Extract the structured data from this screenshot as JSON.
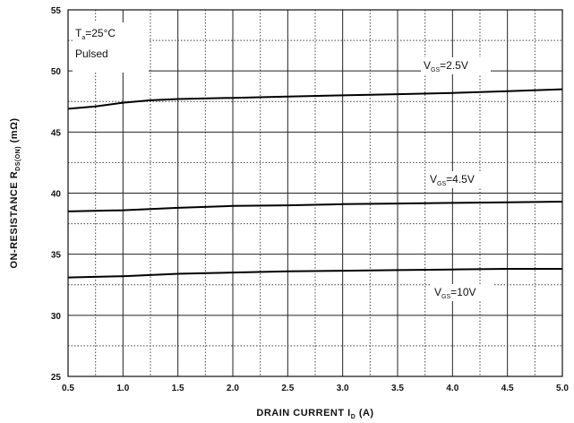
{
  "chart_data": {
    "type": "line",
    "xlabel": "DRAIN CURRENT",
    "xlabel_symbol": "I",
    "xlabel_sub": "D",
    "xlabel_unit": "(A)",
    "ylabel": "ON-RESISTANCE",
    "ylabel_symbol": "R",
    "ylabel_sub": "DS(ON)",
    "ylabel_unit": "(mΩ)",
    "xlim": [
      0.5,
      5.0
    ],
    "ylim": [
      25,
      55
    ],
    "x_major_ticks": [
      0.5,
      1.0,
      1.5,
      2.0,
      2.5,
      3.0,
      3.5,
      4.0,
      4.5,
      5.0
    ],
    "x_tick_labels": [
      "0.5",
      "1.0",
      "1.5",
      "2.0",
      "2.5",
      "3.0",
      "3.5",
      "4.0",
      "4.5",
      "5.0"
    ],
    "y_major_ticks": [
      25,
      30,
      35,
      40,
      45,
      50,
      55
    ],
    "y_tick_labels": [
      "25",
      "30",
      "35",
      "40",
      "45",
      "50",
      "55"
    ],
    "grid": true,
    "conditions": {
      "ta_symbol": "T",
      "ta_sub": "a",
      "ta_value": "=25°C",
      "mode": "Pulsed"
    },
    "series": [
      {
        "name": "V_GS=2.5V",
        "label_symbol": "V",
        "label_sub": "GS",
        "label_value": "=2.5V",
        "x": [
          0.5,
          0.75,
          1.0,
          1.25,
          1.5,
          2.0,
          2.5,
          3.0,
          3.5,
          4.0,
          4.5,
          5.0
        ],
        "y": [
          46.9,
          47.1,
          47.4,
          47.6,
          47.7,
          47.8,
          47.9,
          48.0,
          48.1,
          48.2,
          48.35,
          48.5
        ]
      },
      {
        "name": "V_GS=4.5V",
        "label_symbol": "V",
        "label_sub": "GS",
        "label_value": "=4.5V",
        "x": [
          0.5,
          1.0,
          1.5,
          2.0,
          2.5,
          3.0,
          3.5,
          4.0,
          4.5,
          5.0
        ],
        "y": [
          38.5,
          38.6,
          38.8,
          38.95,
          39.0,
          39.1,
          39.15,
          39.2,
          39.25,
          39.3
        ]
      },
      {
        "name": "V_GS=10V",
        "label_symbol": "V",
        "label_sub": "GS",
        "label_value": "=10V",
        "x": [
          0.5,
          1.0,
          1.5,
          2.0,
          2.5,
          3.0,
          3.5,
          4.0,
          4.5,
          5.0
        ],
        "y": [
          33.1,
          33.2,
          33.4,
          33.5,
          33.6,
          33.65,
          33.7,
          33.75,
          33.8,
          33.8
        ]
      }
    ]
  }
}
